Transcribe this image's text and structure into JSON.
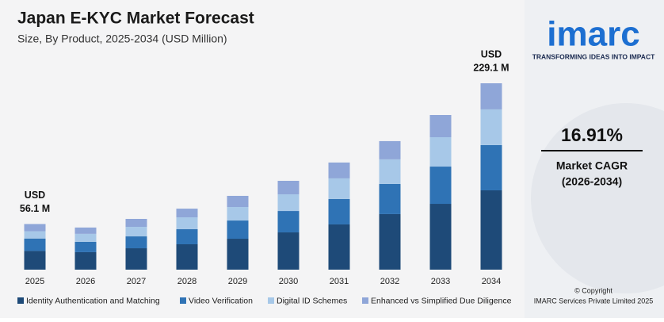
{
  "chart_data": {
    "type": "stacked-bar",
    "title": "Japan E-KYC Market Forecast",
    "subtitle": "Size, By Product, 2025-2034 (USD Million)",
    "categories": [
      "2025",
      "2026",
      "2027",
      "2028",
      "2029",
      "2030",
      "2031",
      "2032",
      "2033",
      "2034"
    ],
    "series": [
      {
        "name": "Identity Authentication and Matching",
        "color": "#1e4a78",
        "values": [
          23,
          21.5,
          26.3,
          31.2,
          38,
          45.8,
          55.6,
          68.3,
          80.9,
          97.5
        ]
      },
      {
        "name": "Video Verification",
        "color": "#2f73b5",
        "values": [
          15.3,
          12.7,
          14.6,
          18.5,
          22.4,
          26.3,
          31.2,
          37.1,
          45.8,
          55.6
        ]
      },
      {
        "name": "Digital ID Schemes",
        "color": "#a7c8e8",
        "values": [
          8.9,
          9.8,
          11.7,
          14.6,
          16.6,
          20.5,
          25.4,
          30.2,
          36.1,
          43.9
        ]
      },
      {
        "name": "Enhanced vs Simplified Due Diligence",
        "color": "#8fa6d8",
        "values": [
          8.9,
          7.8,
          9.8,
          10.7,
          13.7,
          16.6,
          19.5,
          22.4,
          27.3,
          32.1
        ]
      }
    ],
    "annotations": [
      {
        "category": 0,
        "lines": [
          "USD",
          "56.1 M"
        ]
      },
      {
        "category": 9,
        "lines": [
          "USD",
          "229.1 M"
        ]
      }
    ]
  },
  "side_panel": {
    "logo": "imarc",
    "tagline": "TRANSFORMING IDEAS INTO IMPACT",
    "cagr": "16.91%",
    "cagr_label": "Market CAGR",
    "cagr_period": "(2026-2034)",
    "copyright": "© Copyright",
    "company": "IMARC Services Private Limited 2025"
  }
}
